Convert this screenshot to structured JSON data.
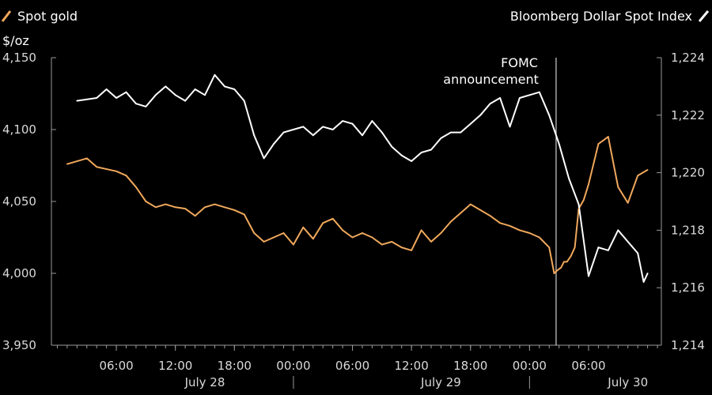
{
  "chart_data": {
    "type": "line",
    "legend": [
      {
        "label": "Spot gold",
        "color": "#f0a85c"
      },
      {
        "label": "Bloomberg Dollar Spot Index",
        "color": "#ffffff"
      }
    ],
    "legend_placement": "top",
    "left_unit": "$/oz",
    "left_axis": {
      "ylim": [
        3950,
        4150
      ],
      "ticks": [
        "3,950",
        "4,000",
        "4,050",
        "4,100",
        "4,150"
      ],
      "values": [
        3950,
        4000,
        4050,
        4100,
        4150
      ]
    },
    "right_axis": {
      "ylim": [
        1214,
        1224
      ],
      "ticks": [
        "1,214",
        "1,216",
        "1,218",
        "1,220",
        "1,222",
        "1,224"
      ],
      "values": [
        1214,
        1216,
        1218,
        1220,
        1222,
        1224
      ]
    },
    "x_axis": {
      "xlim": [
        -6.6,
        55.4
      ],
      "tick_labels": [
        "06:00",
        "12:00",
        "18:00",
        "00:00",
        "06:00",
        "12:00",
        "18:00",
        "00:00",
        "06:00"
      ],
      "tick_hours": [
        0,
        6,
        12,
        18,
        24,
        30,
        36,
        42,
        48
      ],
      "day_labels": [
        {
          "label": "July 28",
          "center_hours": 9
        },
        {
          "label": "July 29",
          "center_hours": 33
        },
        {
          "label": "July 30",
          "center_hours": 52
        }
      ],
      "day_separators_hours": [
        18,
        42
      ]
    },
    "annotation": {
      "lines": [
        "FOMC",
        "announcement"
      ],
      "x_hours": 44.7
    },
    "grid": false,
    "series": [
      {
        "name": "Spot gold",
        "color": "#f0a85c",
        "axis": "left",
        "x": [
          -5,
          -3,
          -2,
          0,
          1,
          2,
          3,
          4,
          5,
          6,
          7,
          8,
          9,
          10,
          11,
          12,
          13,
          14,
          15,
          16,
          17,
          18,
          19,
          20,
          21,
          22,
          23,
          24,
          25,
          26,
          27,
          28,
          29,
          30,
          31,
          32,
          33,
          34,
          35,
          36,
          37,
          38,
          39,
          40,
          41,
          42,
          43,
          44,
          44.5,
          44.8,
          45.2,
          45.5,
          45.8,
          46.2,
          46.6,
          47,
          47.5,
          48,
          49,
          50,
          51,
          52,
          53,
          54
        ],
        "y": [
          4076,
          4080,
          4074,
          4071,
          4068,
          4060,
          4050,
          4046,
          4048,
          4046,
          4045,
          4040,
          4046,
          4048,
          4046,
          4044,
          4041,
          4028,
          4022,
          4025,
          4028,
          4020,
          4032,
          4024,
          4035,
          4038,
          4030,
          4025,
          4028,
          4025,
          4020,
          4022,
          4018,
          4016,
          4030,
          4022,
          4028,
          4036,
          4042,
          4048,
          4044,
          4040,
          4035,
          4033,
          4030,
          4028,
          4025,
          4018,
          4000,
          4002,
          4004,
          4008,
          4008,
          4012,
          4018,
          4045,
          4051,
          4062,
          4090,
          4095,
          4060,
          4049,
          4068,
          4072
        ]
      },
      {
        "name": "Bloomberg Dollar Spot Index",
        "color": "#ffffff",
        "axis": "right",
        "x": [
          -4,
          -2,
          -1,
          0,
          1,
          2,
          3,
          4,
          5,
          6,
          7,
          8,
          9,
          10,
          11,
          12,
          13,
          14,
          15,
          16,
          17,
          18,
          19,
          20,
          21,
          22,
          23,
          24,
          25,
          26,
          27,
          28,
          29,
          30,
          31,
          32,
          33,
          34,
          35,
          36,
          37,
          38,
          39,
          40,
          41,
          42,
          43,
          44,
          45,
          46,
          47,
          48,
          49,
          50,
          51,
          52,
          53,
          53.6,
          54
        ],
        "y": [
          1222.5,
          1222.6,
          1222.9,
          1222.6,
          1222.8,
          1222.4,
          1222.3,
          1222.7,
          1223.0,
          1222.7,
          1222.5,
          1222.9,
          1222.7,
          1223.4,
          1223.0,
          1222.9,
          1222.5,
          1221.3,
          1220.5,
          1221.0,
          1221.4,
          1221.5,
          1221.6,
          1221.3,
          1221.6,
          1221.5,
          1221.8,
          1221.7,
          1221.3,
          1221.8,
          1221.4,
          1220.9,
          1220.6,
          1220.4,
          1220.7,
          1220.8,
          1221.2,
          1221.4,
          1221.4,
          1221.7,
          1222.0,
          1222.4,
          1222.6,
          1221.6,
          1222.6,
          1222.7,
          1222.8,
          1222.0,
          1221.0,
          1219.8,
          1218.9,
          1216.4,
          1217.4,
          1217.3,
          1218.0,
          1217.6,
          1217.2,
          1216.2,
          1216.5
        ]
      }
    ]
  }
}
